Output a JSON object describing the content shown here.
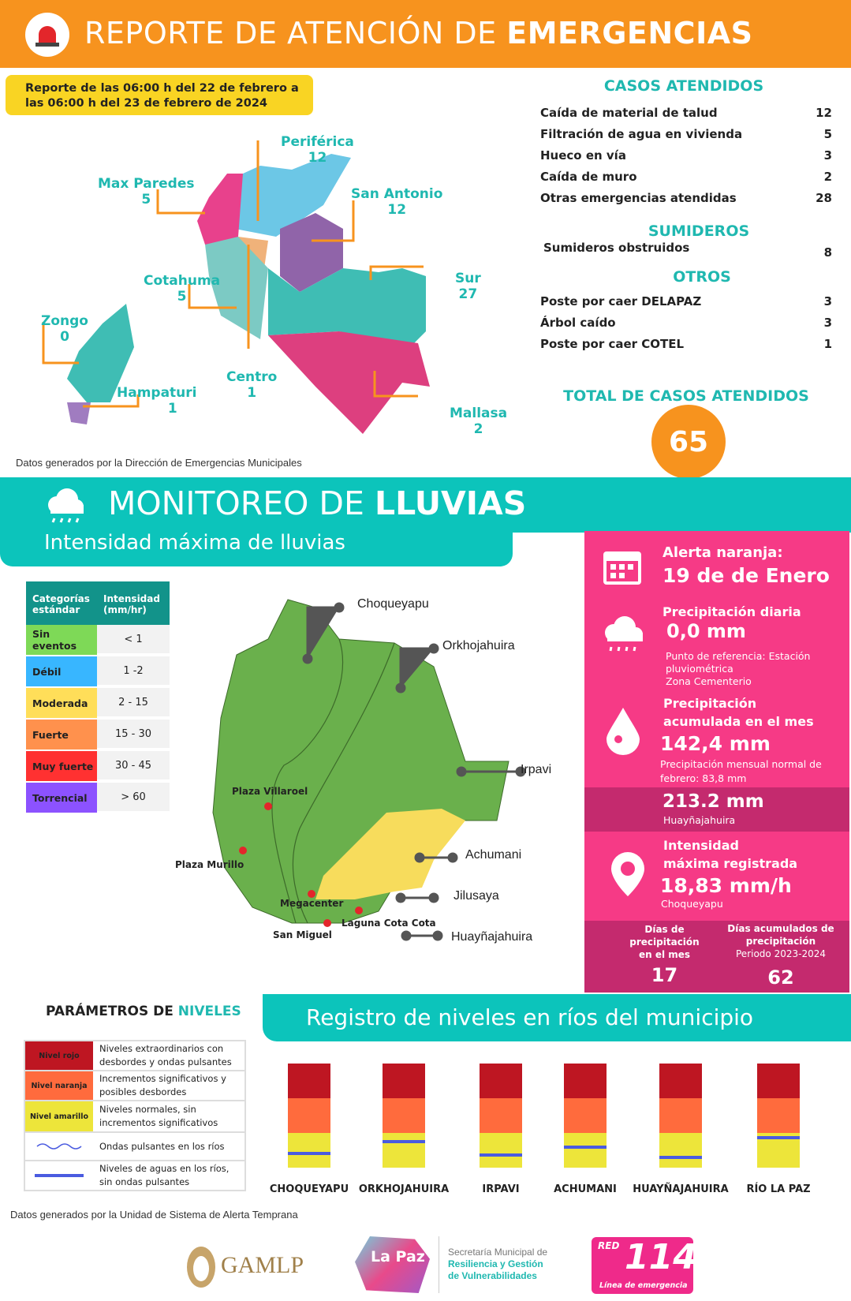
{
  "header": {
    "title_light": "REPORTE DE ATENCIÓN DE ",
    "title_bold": "EMERGENCIAS",
    "icon": "siren-icon"
  },
  "report_period": "Reporte de las  06:00 h del 22 de febrero a las 06:00 h del 23 de febrero de 2024",
  "districts": [
    {
      "name": "Periférica",
      "value": "12"
    },
    {
      "name": "Max Paredes",
      "value": "5"
    },
    {
      "name": "San Antonio",
      "value": "12"
    },
    {
      "name": "Cotahuma",
      "value": "5"
    },
    {
      "name": "Sur",
      "value": "27"
    },
    {
      "name": "Zongo",
      "value": "0"
    },
    {
      "name": "Centro",
      "value": "1"
    },
    {
      "name": "Hampaturi",
      "value": "1"
    },
    {
      "name": "Mallasa",
      "value": "2"
    }
  ],
  "casos": {
    "title": "CASOS ATENDIDOS",
    "items": [
      {
        "label": "Caída de material de talud",
        "value": "12"
      },
      {
        "label": "Filtración de agua en vivienda",
        "value": "5"
      },
      {
        "label": "Hueco en vía",
        "value": "3"
      },
      {
        "label": "Caída de muro",
        "value": "2"
      },
      {
        "label": "Otras emergencias atendidas",
        "value": "28"
      }
    ]
  },
  "sumideros": {
    "title": "SUMIDEROS",
    "items": [
      {
        "label": "Sumideros obstruidos",
        "value": "8"
      }
    ]
  },
  "otros": {
    "title": "OTROS",
    "items": [
      {
        "label": "Poste por caer DELAPAZ",
        "value": "3"
      },
      {
        "label": "Árbol caído",
        "value": "3"
      },
      {
        "label": "Poste por caer COTEL",
        "value": "1"
      }
    ]
  },
  "total": {
    "title": "TOTAL DE CASOS ATENDIDOS",
    "value": "65"
  },
  "source1": "Datos generados por la Dirección de Emergencias Municipales",
  "lluvias": {
    "title_light": "MONITOREO DE ",
    "title_bold": "LLUVIAS",
    "subtitle": "Intensidad máxima de lluvias"
  },
  "categories": {
    "headers": [
      "Categorías estándar",
      "Intensidad (mm/hr)"
    ],
    "rows": [
      {
        "name": "Sin eventos",
        "range": "< 1",
        "color": "#7ed957"
      },
      {
        "name": "Débil",
        "range": "1 -2",
        "color": "#38b6ff"
      },
      {
        "name": "Moderada",
        "range": "2 - 15",
        "color": "#ffde59"
      },
      {
        "name": "Fuerte",
        "range": "15 - 30",
        "color": "#ff914d"
      },
      {
        "name": "Muy fuerte",
        "range": "30 - 45",
        "color": "#ff3131"
      },
      {
        "name": "Torrencial",
        "range": "> 60",
        "color": "#8c52ff"
      }
    ]
  },
  "basins": [
    "Choqueyapu",
    "Orkhojahuira",
    "Irpavi",
    "Achumani",
    "Jilusaya",
    "Huayñajahuira"
  ],
  "places": [
    "Plaza Villaroel",
    "Plaza Murillo",
    "Megacenter",
    "Laguna Cota Cota",
    "San Miguel"
  ],
  "panel": {
    "alert_title": "Alerta naranja:",
    "alert_date": "19 de de Enero",
    "daily_title": "Precipitación diaria",
    "daily_value": "0,0 mm",
    "daily_ref": "Punto de referencia: Estación pluviométrica",
    "daily_zone": "Zona Cementerio",
    "acc_title1": "Precipitación",
    "acc_title2": "acumulada en el mes",
    "acc_value": "142,4 mm",
    "acc_normal": "Precipitación mensual normal de febrero: 83,8 mm",
    "max_acc_value": "213.2 mm",
    "max_acc_station": "Huayñajahuira",
    "int_title1": "Intensidad",
    "int_title2": "máxima registrada",
    "int_value": "18,83 mm/h",
    "int_station": "Choqueyapu",
    "days_month_label": "Días de precipitación en el mes",
    "days_month": "17",
    "days_acc_label": "Días acumulados de precipitación",
    "days_acc_period": "Periodo 2023-2024",
    "days_acc": "62"
  },
  "parametros": {
    "title_dark": "PARÁMETROS DE ",
    "title_accent": "NIVELES",
    "rows": [
      {
        "label": "Nivel rojo",
        "desc": "Niveles extraordinarios con desbordes y ondas pulsantes",
        "color": "#be1622"
      },
      {
        "label": "Nivel  naranja",
        "desc": "Incrementos significativos y posibles desbordes",
        "color": "#ff6b3d"
      },
      {
        "label": "Nivel amarillo",
        "desc": "Niveles normales, sin incrementos significativos",
        "color": "#ede53a"
      },
      {
        "label": "",
        "desc": "Ondas pulsantes en los ríos",
        "symbol": "wave"
      },
      {
        "label": "",
        "desc": "Niveles de aguas en los ríos, sin ondas pulsantes",
        "symbol": "line"
      }
    ]
  },
  "rivers": {
    "title": "Registro de niveles en ríos del municipio",
    "items": [
      {
        "name": "CHOQUEYAPU",
        "level_fraction": 0.14
      },
      {
        "name": "ORKHOJAHUIRA",
        "level_fraction": 0.25
      },
      {
        "name": "IRPAVI",
        "level_fraction": 0.12
      },
      {
        "name": "ACHUMANI",
        "level_fraction": 0.2
      },
      {
        "name": "HUAYÑAJAHUIRA",
        "level_fraction": 0.1
      },
      {
        "name": "RÍO LA PAZ",
        "level_fraction": 0.29
      }
    ]
  },
  "source2": "Datos generados por la Unidad de Sistema de Alerta Temprana",
  "logos": {
    "gamlp": "GAMLP",
    "lapaz": "La Paz",
    "secretaria1": "Secretaría Municipal de",
    "secretaria2": "Resiliencia y Gestión",
    "secretaria3": "de Vulnerabilidades",
    "red": "RED",
    "red_num": "114",
    "red_sub": "Línea de emergencia"
  }
}
